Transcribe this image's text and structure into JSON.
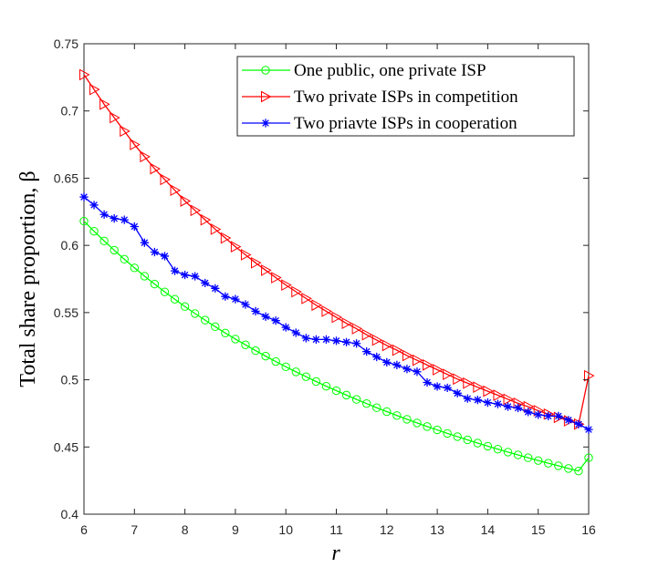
{
  "chart_data": {
    "type": "line",
    "title": "",
    "xlabel": "r",
    "ylabel": "Total share proportion, β",
    "xlim": [
      6,
      16
    ],
    "ylim": [
      0.4,
      0.75
    ],
    "xticks": [
      6,
      7,
      8,
      9,
      10,
      11,
      12,
      13,
      14,
      15,
      16
    ],
    "xtick_labels": [
      "6",
      "7",
      "8",
      "9",
      "10",
      "11",
      "12",
      "13",
      "14",
      "15",
      "16"
    ],
    "yticks": [
      0.4,
      0.45,
      0.5,
      0.55,
      0.6,
      0.65,
      0.7,
      0.75
    ],
    "ytick_labels": [
      "0.4",
      "0.45",
      "0.5",
      "0.55",
      "0.6",
      "0.65",
      "0.7",
      "0.75"
    ],
    "grid": false,
    "legend_position": "top-right",
    "x": [
      6,
      6.2,
      6.4,
      6.6,
      6.8,
      7,
      7.2,
      7.4,
      7.6,
      7.8,
      8,
      8.2,
      8.4,
      8.6,
      8.8,
      9,
      9.2,
      9.4,
      9.6,
      9.8,
      10,
      10.2,
      10.4,
      10.6,
      10.8,
      11,
      11.2,
      11.4,
      11.6,
      11.8,
      12,
      12.2,
      12.4,
      12.6,
      12.8,
      13,
      13.2,
      13.4,
      13.6,
      13.8,
      14,
      14.2,
      14.4,
      14.6,
      14.8,
      15,
      15.2,
      15.4,
      15.6,
      15.8,
      16
    ],
    "series": [
      {
        "name": "One public, one private ISP",
        "color": "#00ff00",
        "marker": "circle",
        "values": [
          0.618,
          0.6105,
          0.6033,
          0.5964,
          0.5897,
          0.5833,
          0.5771,
          0.5712,
          0.5654,
          0.5599,
          0.5545,
          0.5493,
          0.5444,
          0.5395,
          0.5348,
          0.5303,
          0.526,
          0.5217,
          0.5176,
          0.5136,
          0.5097,
          0.5059,
          0.5023,
          0.4987,
          0.4952,
          0.4919,
          0.4886,
          0.4854,
          0.4823,
          0.4792,
          0.4763,
          0.4734,
          0.4706,
          0.4679,
          0.4652,
          0.4627,
          0.4601,
          0.4577,
          0.4553,
          0.4529,
          0.4506,
          0.4484,
          0.4462,
          0.4441,
          0.442,
          0.4399,
          0.4379,
          0.436,
          0.434,
          0.4321,
          0.442
        ]
      },
      {
        "name": "Two private ISPs in competition",
        "color": "#ff0000",
        "marker": "triangle-right",
        "values": [
          0.727,
          0.716,
          0.705,
          0.695,
          0.685,
          0.675,
          0.666,
          0.657,
          0.649,
          0.641,
          0.633,
          0.626,
          0.619,
          0.612,
          0.6055,
          0.599,
          0.593,
          0.587,
          0.5815,
          0.576,
          0.5705,
          0.5655,
          0.5605,
          0.5555,
          0.551,
          0.5465,
          0.542,
          0.538,
          0.5335,
          0.5295,
          0.5255,
          0.522,
          0.518,
          0.5145,
          0.511,
          0.5075,
          0.504,
          0.5005,
          0.4975,
          0.4945,
          0.4915,
          0.4885,
          0.4855,
          0.4825,
          0.48,
          0.477,
          0.4745,
          0.472,
          0.4695,
          0.467,
          0.503
        ]
      },
      {
        "name": "Two priavte ISPs in cooperation",
        "color": "#0000ff",
        "marker": "asterisk",
        "values": [
          0.636,
          0.63,
          0.623,
          0.62,
          0.619,
          0.614,
          0.602,
          0.595,
          0.592,
          0.581,
          0.578,
          0.577,
          0.572,
          0.568,
          0.562,
          0.56,
          0.556,
          0.551,
          0.547,
          0.544,
          0.539,
          0.535,
          0.531,
          0.53,
          0.53,
          0.529,
          0.528,
          0.527,
          0.521,
          0.517,
          0.513,
          0.511,
          0.508,
          0.506,
          0.498,
          0.495,
          0.494,
          0.49,
          0.486,
          0.485,
          0.483,
          0.482,
          0.48,
          0.479,
          0.476,
          0.474,
          0.473,
          0.473,
          0.47,
          0.467,
          0.463
        ]
      }
    ]
  }
}
